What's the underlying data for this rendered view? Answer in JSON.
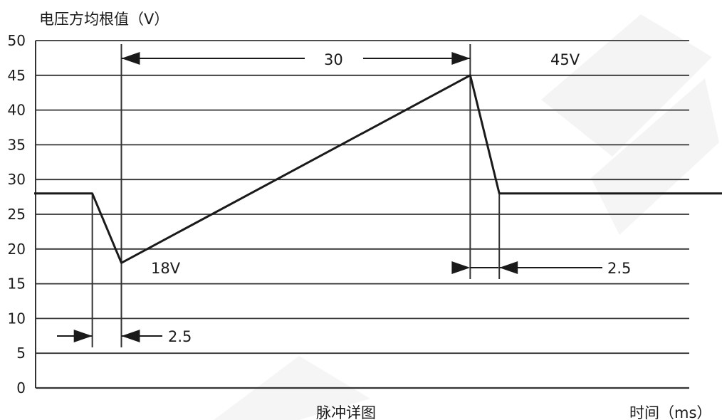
{
  "chart_data": {
    "type": "line",
    "ylabel": "电压方均根值（V）",
    "xlabel": "时间（ms）",
    "caption": "脉冲详图",
    "ylim": [
      0,
      50
    ],
    "y_ticks": [
      "0",
      "5",
      "10",
      "15",
      "20",
      "25",
      "30",
      "35",
      "40",
      "45",
      "50"
    ],
    "grid": true,
    "series": [
      {
        "x": [
          0,
          5,
          7.5,
          37.5,
          40,
          62
        ],
        "y": [
          28,
          28,
          18,
          45,
          28,
          28
        ]
      }
    ],
    "annotations": {
      "min_label": "18V",
      "peak_label": "45V",
      "ramp_duration": "30",
      "fall_duration": "2.5",
      "rise_duration": "2.5"
    }
  },
  "colors": {
    "line": "#1a1a1a",
    "grid": "#333333",
    "watermark": "#9a9a9a"
  }
}
